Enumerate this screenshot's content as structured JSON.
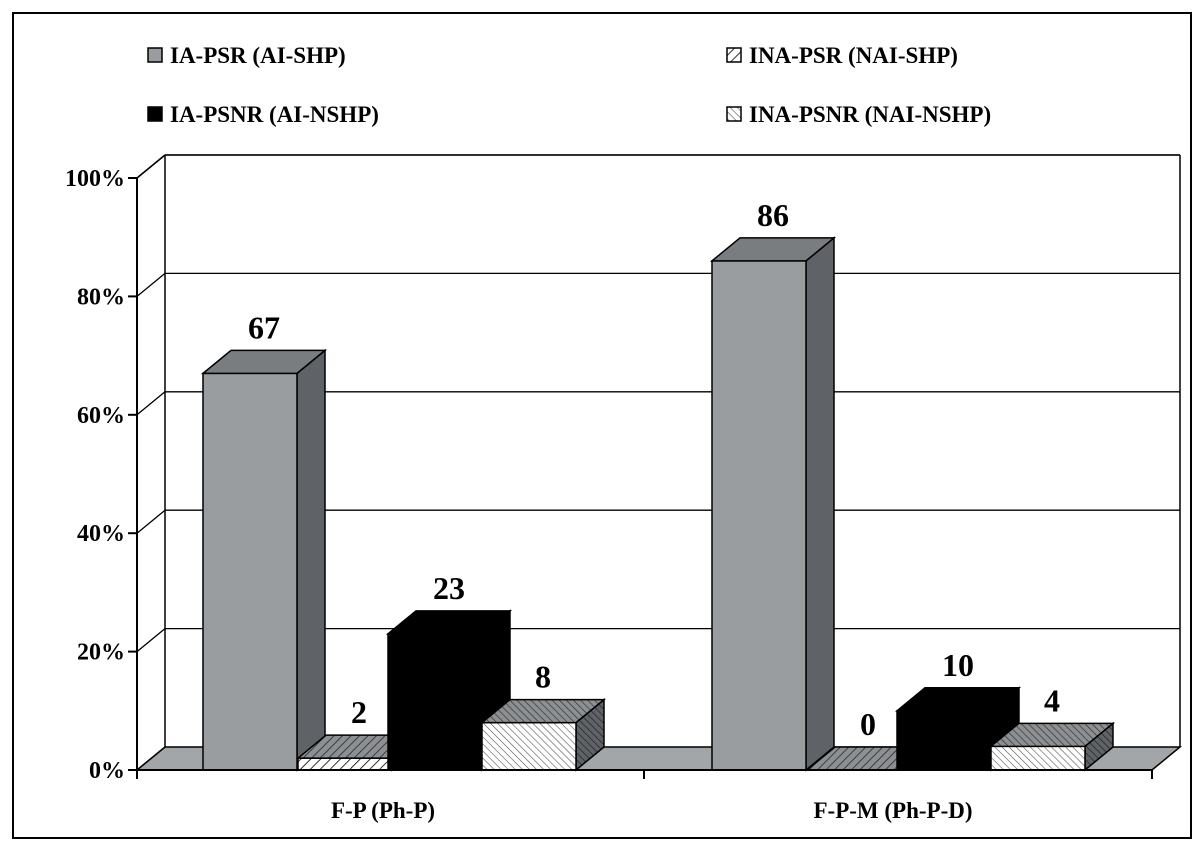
{
  "chart_data": {
    "type": "bar",
    "title": "",
    "xlabel": "",
    "ylabel": "",
    "categories": [
      "F-P (Ph-P)",
      "F-P-M (Ph-P-D)"
    ],
    "series": [
      {
        "name": "IA-PSR (AI-SHP)",
        "values": [
          67,
          86
        ],
        "value_labels": [
          "67",
          "86"
        ],
        "fill": "gray"
      },
      {
        "name": "INA-PSR (NAI-SHP)",
        "values": [
          2,
          0
        ],
        "value_labels": [
          "2",
          "0"
        ],
        "fill": "diagonal-hatch"
      },
      {
        "name": "IA-PSNR (AI-NSHP)",
        "values": [
          23,
          10
        ],
        "value_labels": [
          "23",
          "10"
        ],
        "fill": "black"
      },
      {
        "name": "INA-PSNR (NAI-NSHP)",
        "values": [
          8,
          4
        ],
        "value_labels": [
          "8",
          "4"
        ],
        "fill": "cross-hatch"
      }
    ],
    "ylim": [
      0,
      100
    ],
    "yticks": [
      0,
      20,
      40,
      60,
      80,
      100
    ],
    "ytick_labels": [
      "0%",
      "20%",
      "40%",
      "60%",
      "80%",
      "100%"
    ],
    "grid": true,
    "legend": "top",
    "style": "3d-bar",
    "colors": {
      "gray_front": "#9a9da0",
      "gray_side": "#5f6266",
      "gray_top": "#7a7d80",
      "black": "#000000",
      "floor": "#a3a6a9"
    }
  }
}
